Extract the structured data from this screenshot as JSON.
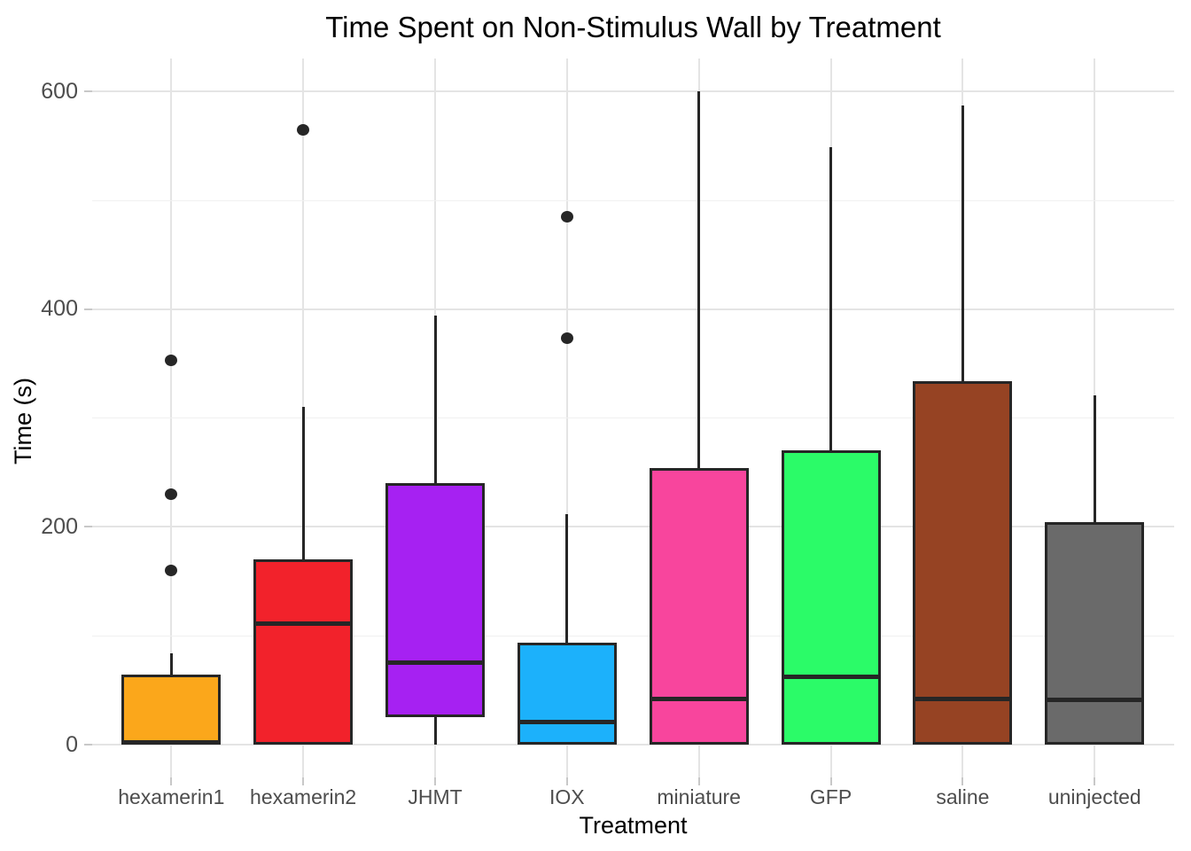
{
  "title": "Time Spent on Non-Stimulus Wall by Treatment",
  "chart_data": {
    "type": "boxplot",
    "title": "Time Spent on Non-Stimulus Wall by Treatment",
    "xlabel": "Treatment",
    "ylabel": "Time (s)",
    "ylim": [
      -30,
      630
    ],
    "yticks": [
      0,
      200,
      400,
      600
    ],
    "yminor": [
      100,
      300,
      500
    ],
    "grid": "major and minor horizontal, major vertical per category, light gray on white",
    "legend": "none",
    "categories": [
      "hexamerin1",
      "hexamerin2",
      "JHMT",
      "IOX",
      "miniature",
      "GFP",
      "saline",
      "uninjected"
    ],
    "series": [
      {
        "name": "hexamerin1",
        "color": "#FBA71B",
        "min": 0,
        "q1": 0,
        "median": 2,
        "q3": 64,
        "whisker_high": 84,
        "outliers": [
          160,
          230,
          353
        ]
      },
      {
        "name": "hexamerin2",
        "color": "#F2222B",
        "min": 0,
        "q1": 0,
        "median": 111,
        "q3": 170,
        "whisker_high": 310,
        "outliers": [
          565
        ]
      },
      {
        "name": "JHMT",
        "color": "#A621F2",
        "min": 0,
        "q1": 25,
        "median": 75,
        "q3": 240,
        "whisker_high": 394,
        "outliers": []
      },
      {
        "name": "IOX",
        "color": "#1CB1FB",
        "min": 0,
        "q1": 0,
        "median": 21,
        "q3": 94,
        "whisker_high": 212,
        "outliers": [
          373,
          485
        ]
      },
      {
        "name": "miniature",
        "color": "#F8459D",
        "min": 0,
        "q1": 0,
        "median": 42,
        "q3": 254,
        "whisker_high": 600,
        "outliers": []
      },
      {
        "name": "GFP",
        "color": "#2BFB68",
        "min": 0,
        "q1": 0,
        "median": 62,
        "q3": 270,
        "whisker_high": 549,
        "outliers": []
      },
      {
        "name": "saline",
        "color": "#964323",
        "min": 0,
        "q1": 0,
        "median": 42,
        "q3": 334,
        "whisker_high": 587,
        "outliers": []
      },
      {
        "name": "uninjected",
        "color": "#6A6A6A",
        "min": 0,
        "q1": 0,
        "median": 41,
        "q3": 204,
        "whisker_high": 321,
        "outliers": []
      }
    ],
    "box_border_color": "#262626",
    "outlier_color": "#262626"
  }
}
